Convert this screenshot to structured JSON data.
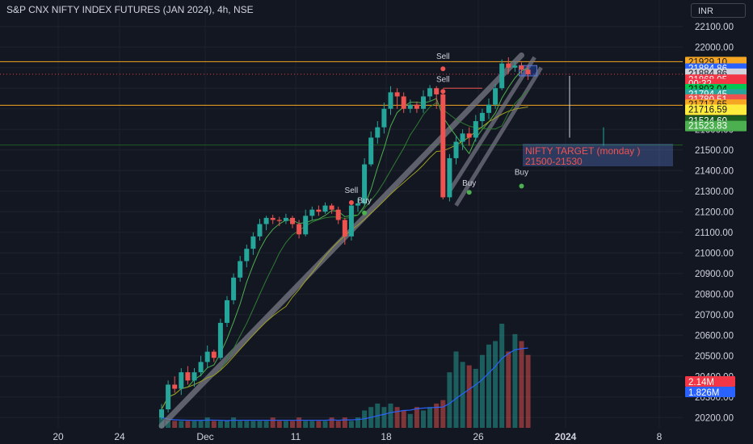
{
  "header": {
    "title": "S&P CNX NIFTY INDEX FUTURES (JAN 2024), 4h, NSE",
    "currency": "INR"
  },
  "colors": {
    "background": "#131722",
    "up": "#26a69a",
    "down": "#ef5350",
    "orange_line": "#f5a623",
    "channel": "#9598a1"
  },
  "chart_data": {
    "type": "candlestick",
    "ylim": [
      20150,
      22150
    ],
    "y_ticks": [
      "22100.00",
      "22000.00",
      "21900.00",
      "21800.00",
      "21700.00",
      "21600.00",
      "21500.00",
      "21400.00",
      "21300.00",
      "21200.00",
      "21100.00",
      "21000.00",
      "20900.00",
      "20800.00",
      "20700.00",
      "20600.00",
      "20500.00",
      "20400.00",
      "20300.00",
      "20200.00"
    ],
    "x_ticks": [
      "20",
      "24",
      "Dec",
      "11",
      "18",
      "26",
      "2024",
      "8"
    ],
    "candles": [
      [
        20200,
        20240,
        20190,
        20265
      ],
      [
        20240,
        20360,
        20225,
        20380
      ],
      [
        20360,
        20340,
        20320,
        20400
      ],
      [
        20340,
        20420,
        20310,
        20440
      ],
      [
        20420,
        20380,
        20360,
        20450
      ],
      [
        20380,
        20420,
        20350,
        20440
      ],
      [
        20420,
        20470,
        20400,
        20500
      ],
      [
        20470,
        20520,
        20440,
        20550
      ],
      [
        20520,
        20490,
        20470,
        20530
      ],
      [
        20490,
        20660,
        20480,
        20680
      ],
      [
        20660,
        20770,
        20640,
        20790
      ],
      [
        20770,
        20880,
        20750,
        20900
      ],
      [
        20880,
        20960,
        20860,
        20985
      ],
      [
        20960,
        21020,
        20930,
        21040
      ],
      [
        21020,
        21080,
        20990,
        21100
      ],
      [
        21080,
        21140,
        21060,
        21165
      ],
      [
        21140,
        21170,
        21110,
        21180
      ],
      [
        21170,
        21160,
        21140,
        21185
      ],
      [
        21160,
        21155,
        21130,
        21175
      ],
      [
        21155,
        21170,
        21140,
        21190
      ],
      [
        21170,
        21140,
        21120,
        21180
      ],
      [
        21140,
        21090,
        21070,
        21160
      ],
      [
        21090,
        21180,
        21080,
        21210
      ],
      [
        21180,
        21210,
        21160,
        21225
      ],
      [
        21210,
        21200,
        21180,
        21230
      ],
      [
        21200,
        21230,
        21190,
        21245
      ],
      [
        21230,
        21210,
        21190,
        21240
      ],
      [
        21210,
        21160,
        21140,
        21225
      ],
      [
        21160,
        21080,
        21040,
        21170
      ],
      [
        21080,
        21230,
        21060,
        21250
      ],
      [
        21230,
        21240,
        21200,
        21265
      ],
      [
        21240,
        21430,
        21230,
        21460
      ],
      [
        21430,
        21560,
        21420,
        21590
      ],
      [
        21560,
        21610,
        21530,
        21640
      ],
      [
        21610,
        21700,
        21580,
        21730
      ],
      [
        21700,
        21780,
        21670,
        21810
      ],
      [
        21780,
        21760,
        21700,
        21800
      ],
      [
        21760,
        21700,
        21680,
        21780
      ],
      [
        21700,
        21720,
        21680,
        21745
      ],
      [
        21720,
        21700,
        21680,
        21735
      ],
      [
        21700,
        21760,
        21680,
        21790
      ],
      [
        21760,
        21800,
        21740,
        21815
      ],
      [
        21800,
        21770,
        21700,
        21810
      ],
      [
        21770,
        21270,
        21260,
        21790
      ],
      [
        21270,
        21460,
        21250,
        21480
      ],
      [
        21460,
        21540,
        21430,
        21570
      ],
      [
        21540,
        21580,
        21500,
        21600
      ],
      [
        21580,
        21560,
        21520,
        21610
      ],
      [
        21560,
        21640,
        21540,
        21670
      ],
      [
        21640,
        21680,
        21610,
        21700
      ],
      [
        21680,
        21720,
        21650,
        21750
      ],
      [
        21720,
        21800,
        21700,
        21820
      ],
      [
        21800,
        21920,
        21790,
        21940
      ],
      [
        21920,
        21900,
        21870,
        21950
      ],
      [
        21900,
        21910,
        21880,
        21930
      ],
      [
        21910,
        21890,
        21870,
        21925
      ],
      [
        21890,
        21868,
        21840,
        21910
      ]
    ],
    "volume": [
      3,
      2,
      2,
      2,
      2,
      2,
      2,
      3,
      2,
      2,
      2,
      3,
      2,
      2,
      2,
      2,
      2,
      3,
      2,
      2,
      2,
      3,
      2,
      2,
      2,
      2,
      3,
      2,
      3,
      2,
      3,
      5,
      6,
      7,
      6,
      7,
      6,
      5,
      4,
      6,
      5,
      6,
      7,
      8,
      16,
      22,
      19,
      18,
      17,
      21,
      24,
      25,
      30,
      22,
      27,
      25,
      21
    ],
    "price_labels": [
      {
        "value": "21929.10",
        "bg": "#f5a623",
        "fg": "#131722",
        "y": 21929
      },
      {
        "value": "21884.86",
        "bg": "#2962ff",
        "fg": "#ffffff",
        "y": 21897
      },
      {
        "value": "21884.86",
        "bg": "#d1d4dc",
        "fg": "#131722",
        "y": 21872
      },
      {
        "value": "21868.05",
        "bg": "#f23645",
        "fg": "#ffffff",
        "y": 21843
      },
      {
        "value": "00:32",
        "bg": "#f23645",
        "fg": "#ffffff",
        "y": 21822
      },
      {
        "value": "21803.04",
        "bg": "#00c853",
        "fg": "#000000",
        "y": 21797
      },
      {
        "value": "21794.45",
        "bg": "#26a69a",
        "fg": "#ffffff",
        "y": 21772
      },
      {
        "value": "21780.51",
        "bg": "#ef5350",
        "fg": "#ffffff",
        "y": 21747
      },
      {
        "value": "21717.65",
        "bg": "#f5a623",
        "fg": "#131722",
        "y": 21722
      },
      {
        "value": "21716.59",
        "bg": "#ffeb3b",
        "fg": "#131722",
        "y": 21697
      },
      {
        "value": "21524.60",
        "bg": "#1b5e20",
        "fg": "#ffffff",
        "y": 21643
      },
      {
        "value": "21523.83",
        "bg": "#4caf50",
        "fg": "#ffffff",
        "y": 21618
      }
    ],
    "volume_labels": [
      {
        "value": "2.14M",
        "bg": "#f23645"
      },
      {
        "value": "1.826M",
        "bg": "#2962ff"
      }
    ],
    "annotations": {
      "signals": [
        "Sell",
        "Buy",
        "Sell",
        "Sell",
        "Buy",
        "Buy"
      ],
      "target_line1": "NIFTY TARGET (monday )",
      "target_line2": "21500-21530"
    }
  }
}
